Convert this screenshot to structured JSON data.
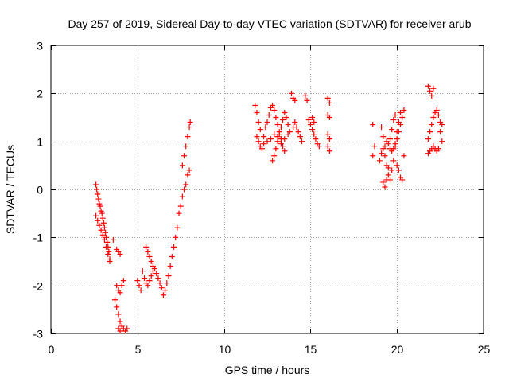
{
  "chart_data": {
    "type": "scatter",
    "title": "Day 257 of 2019, Sidereal Day-to-day VTEC variation (SDTVAR) for receiver arub",
    "xlabel": "GPS time / hours",
    "ylabel": "SDTVAR / TECUs",
    "xlim": [
      0,
      25
    ],
    "ylim": [
      -3,
      3
    ],
    "xticks": [
      0,
      5,
      10,
      15,
      20,
      25
    ],
    "yticks": [
      -3,
      -2,
      -1,
      0,
      1,
      2,
      3
    ],
    "grid": true,
    "marker": "+",
    "color": "#ff0000",
    "series": [
      {
        "name": "SDTVAR",
        "points": [
          [
            2.6,
            0.1
          ],
          [
            2.65,
            0.0
          ],
          [
            2.7,
            -0.1
          ],
          [
            2.75,
            -0.2
          ],
          [
            2.8,
            -0.3
          ],
          [
            2.85,
            -0.35
          ],
          [
            2.9,
            -0.45
          ],
          [
            2.95,
            -0.5
          ],
          [
            3.0,
            -0.6
          ],
          [
            3.05,
            -0.7
          ],
          [
            3.1,
            -0.8
          ],
          [
            3.15,
            -0.9
          ],
          [
            3.2,
            -1.0
          ],
          [
            3.25,
            -1.1
          ],
          [
            3.3,
            -1.2
          ],
          [
            3.35,
            -1.3
          ],
          [
            3.4,
            -1.45
          ],
          [
            2.6,
            -0.55
          ],
          [
            2.7,
            -0.65
          ],
          [
            2.8,
            -0.75
          ],
          [
            2.9,
            -0.85
          ],
          [
            3.0,
            -0.95
          ],
          [
            3.1,
            -1.05
          ],
          [
            3.2,
            -1.2
          ],
          [
            3.3,
            -1.35
          ],
          [
            3.4,
            -1.5
          ],
          [
            3.6,
            -1.05
          ],
          [
            3.8,
            -1.25
          ],
          [
            3.9,
            -1.3
          ],
          [
            4.0,
            -1.35
          ],
          [
            3.8,
            -2.0
          ],
          [
            3.9,
            -2.1
          ],
          [
            4.0,
            -2.15
          ],
          [
            4.1,
            -2.0
          ],
          [
            4.2,
            -1.9
          ],
          [
            3.7,
            -2.3
          ],
          [
            3.8,
            -2.45
          ],
          [
            3.9,
            -2.6
          ],
          [
            4.0,
            -2.75
          ],
          [
            4.1,
            -2.85
          ],
          [
            4.2,
            -2.9
          ],
          [
            4.3,
            -2.95
          ],
          [
            4.4,
            -2.9
          ],
          [
            3.9,
            -2.9
          ],
          [
            4.0,
            -2.95
          ],
          [
            5.0,
            -1.9
          ],
          [
            5.1,
            -2.0
          ],
          [
            5.2,
            -2.1
          ],
          [
            5.3,
            -1.7
          ],
          [
            5.4,
            -1.85
          ],
          [
            5.5,
            -1.95
          ],
          [
            5.6,
            -2.0
          ],
          [
            5.7,
            -1.9
          ],
          [
            5.8,
            -1.8
          ],
          [
            5.9,
            -1.7
          ],
          [
            6.0,
            -1.65
          ],
          [
            6.1,
            -1.75
          ],
          [
            6.2,
            -1.85
          ],
          [
            6.3,
            -1.95
          ],
          [
            6.4,
            -2.05
          ],
          [
            5.5,
            -1.2
          ],
          [
            5.6,
            -1.3
          ],
          [
            5.7,
            -1.4
          ],
          [
            5.8,
            -1.5
          ],
          [
            5.9,
            -1.6
          ],
          [
            6.5,
            -2.2
          ],
          [
            6.6,
            -2.1
          ],
          [
            6.7,
            -1.95
          ],
          [
            6.8,
            -1.8
          ],
          [
            6.9,
            -1.6
          ],
          [
            7.0,
            -1.4
          ],
          [
            7.1,
            -1.2
          ],
          [
            7.2,
            -1.0
          ],
          [
            7.3,
            -0.8
          ],
          [
            7.4,
            -0.5
          ],
          [
            7.5,
            -0.35
          ],
          [
            7.6,
            -0.15
          ],
          [
            7.7,
            0.0
          ],
          [
            7.8,
            0.1
          ],
          [
            7.9,
            0.3
          ],
          [
            8.0,
            0.4
          ],
          [
            7.6,
            0.5
          ],
          [
            7.7,
            0.7
          ],
          [
            7.8,
            0.9
          ],
          [
            7.9,
            1.1
          ],
          [
            8.0,
            1.3
          ],
          [
            8.05,
            1.4
          ],
          [
            11.8,
            1.75
          ],
          [
            11.9,
            1.6
          ],
          [
            12.0,
            1.4
          ],
          [
            12.1,
            1.25
          ],
          [
            11.9,
            1.1
          ],
          [
            12.0,
            1.0
          ],
          [
            12.1,
            0.9
          ],
          [
            12.2,
            0.85
          ],
          [
            12.3,
            0.95
          ],
          [
            12.4,
            1.3
          ],
          [
            12.5,
            1.4
          ],
          [
            12.6,
            1.55
          ],
          [
            12.7,
            1.7
          ],
          [
            12.8,
            1.75
          ],
          [
            12.9,
            1.65
          ],
          [
            13.0,
            1.5
          ],
          [
            13.1,
            1.35
          ],
          [
            13.2,
            1.2
          ],
          [
            13.3,
            1.05
          ],
          [
            13.4,
            0.9
          ],
          [
            13.5,
            0.8
          ],
          [
            12.8,
            0.6
          ],
          [
            12.9,
            0.7
          ],
          [
            13.0,
            0.85
          ],
          [
            13.1,
            1.0
          ],
          [
            13.2,
            1.15
          ],
          [
            13.3,
            1.3
          ],
          [
            13.4,
            1.45
          ],
          [
            13.5,
            1.6
          ],
          [
            13.6,
            1.5
          ],
          [
            13.7,
            1.35
          ],
          [
            13.8,
            1.2
          ],
          [
            12.3,
            1.1
          ],
          [
            12.5,
            1.0
          ],
          [
            12.7,
            1.05
          ],
          [
            12.9,
            1.15
          ],
          [
            13.1,
            1.1
          ],
          [
            13.3,
            0.95
          ],
          [
            13.5,
            1.05
          ],
          [
            13.7,
            1.15
          ],
          [
            13.9,
            2.0
          ],
          [
            14.0,
            1.9
          ],
          [
            14.1,
            1.85
          ],
          [
            14.2,
            1.3
          ],
          [
            14.3,
            1.2
          ],
          [
            14.4,
            1.1
          ],
          [
            14.0,
            1.3
          ],
          [
            14.1,
            1.4
          ],
          [
            14.5,
            1.0
          ],
          [
            14.7,
            1.95
          ],
          [
            14.8,
            1.85
          ],
          [
            14.9,
            1.45
          ],
          [
            15.0,
            1.35
          ],
          [
            15.1,
            1.25
          ],
          [
            15.2,
            1.15
          ],
          [
            15.3,
            1.05
          ],
          [
            15.4,
            0.95
          ],
          [
            15.5,
            0.9
          ],
          [
            15.1,
            1.5
          ],
          [
            15.2,
            1.4
          ],
          [
            16.0,
            1.9
          ],
          [
            16.1,
            1.8
          ],
          [
            16.0,
            1.55
          ],
          [
            16.1,
            1.5
          ],
          [
            16.0,
            1.15
          ],
          [
            16.1,
            1.05
          ],
          [
            16.0,
            0.9
          ],
          [
            16.1,
            0.8
          ],
          [
            18.6,
            1.35
          ],
          [
            18.6,
            0.7
          ],
          [
            18.7,
            0.9
          ],
          [
            19.0,
            0.6
          ],
          [
            19.1,
            0.75
          ],
          [
            19.2,
            0.85
          ],
          [
            19.3,
            0.9
          ],
          [
            19.4,
            1.0
          ],
          [
            19.5,
            0.95
          ],
          [
            19.6,
            0.85
          ],
          [
            19.7,
            0.8
          ],
          [
            19.8,
            0.85
          ],
          [
            19.9,
            0.95
          ],
          [
            20.0,
            1.05
          ],
          [
            20.1,
            1.2
          ],
          [
            20.2,
            1.35
          ],
          [
            20.3,
            1.5
          ],
          [
            19.1,
            1.3
          ],
          [
            19.2,
            1.1
          ],
          [
            19.3,
            0.7
          ],
          [
            19.4,
            0.5
          ],
          [
            19.5,
            0.3
          ],
          [
            19.6,
            0.2
          ],
          [
            19.7,
            0.4
          ],
          [
            19.8,
            0.6
          ],
          [
            19.9,
            0.9
          ],
          [
            20.0,
            1.2
          ],
          [
            20.1,
            1.4
          ],
          [
            20.2,
            1.6
          ],
          [
            19.2,
            0.15
          ],
          [
            19.3,
            0.05
          ],
          [
            19.4,
            0.2
          ],
          [
            19.5,
            0.45
          ],
          [
            19.6,
            1.05
          ],
          [
            19.7,
            1.25
          ],
          [
            19.8,
            1.45
          ],
          [
            19.9,
            1.55
          ],
          [
            20.0,
            0.5
          ],
          [
            20.1,
            0.4
          ],
          [
            20.2,
            0.25
          ],
          [
            20.3,
            0.2
          ],
          [
            20.4,
            0.7
          ],
          [
            20.4,
            1.65
          ],
          [
            21.8,
            2.15
          ],
          [
            21.9,
            2.05
          ],
          [
            22.0,
            1.95
          ],
          [
            22.1,
            2.1
          ],
          [
            21.8,
            1.05
          ],
          [
            21.9,
            1.2
          ],
          [
            22.0,
            1.35
          ],
          [
            22.1,
            1.5
          ],
          [
            22.2,
            1.6
          ],
          [
            22.3,
            1.65
          ],
          [
            22.4,
            1.55
          ],
          [
            22.5,
            1.4
          ],
          [
            22.6,
            1.35
          ],
          [
            22.5,
            1.2
          ],
          [
            21.8,
            0.75
          ],
          [
            21.9,
            0.8
          ],
          [
            22.0,
            0.85
          ],
          [
            22.1,
            0.9
          ],
          [
            22.2,
            0.85
          ],
          [
            22.3,
            0.8
          ],
          [
            22.4,
            0.85
          ],
          [
            22.6,
            1.0
          ]
        ]
      }
    ]
  }
}
